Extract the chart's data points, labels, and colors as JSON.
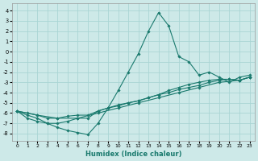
{
  "xlabel": "Humidex (Indice chaleur)",
  "background_color": "#cde9e8",
  "grid_color": "#aad5d4",
  "line_color": "#1a7a6e",
  "xlim": [
    -0.5,
    23.5
  ],
  "ylim": [
    -8.7,
    4.7
  ],
  "xticks": [
    0,
    1,
    2,
    3,
    4,
    5,
    6,
    7,
    8,
    9,
    10,
    11,
    12,
    13,
    14,
    15,
    16,
    17,
    18,
    19,
    20,
    21,
    22,
    23
  ],
  "yticks": [
    -8,
    -7,
    -6,
    -5,
    -4,
    -3,
    -2,
    -1,
    0,
    1,
    2,
    3,
    4
  ],
  "series_main": [
    [
      0,
      -5.8
    ],
    [
      1,
      -6.2
    ],
    [
      2,
      -6.5
    ],
    [
      3,
      -7.0
    ],
    [
      4,
      -7.4
    ],
    [
      5,
      -7.7
    ],
    [
      6,
      -7.9
    ],
    [
      7,
      -8.1
    ],
    [
      8,
      -7.0
    ],
    [
      9,
      -5.5
    ],
    [
      10,
      -3.8
    ],
    [
      11,
      -2.0
    ],
    [
      12,
      -0.2
    ],
    [
      13,
      2.0
    ],
    [
      14,
      3.8
    ],
    [
      15,
      2.5
    ],
    [
      16,
      -0.5
    ],
    [
      17,
      -1.0
    ],
    [
      18,
      -2.3
    ],
    [
      19,
      -2.0
    ],
    [
      20,
      -2.5
    ],
    [
      21,
      -3.0
    ],
    [
      22,
      -2.5
    ],
    [
      23,
      -2.3
    ]
  ],
  "series_lower1": [
    [
      0,
      -5.8
    ],
    [
      1,
      -6.5
    ],
    [
      2,
      -6.8
    ],
    [
      3,
      -7.0
    ],
    [
      4,
      -7.0
    ],
    [
      5,
      -6.8
    ],
    [
      6,
      -6.5
    ],
    [
      7,
      -6.5
    ],
    [
      8,
      -5.8
    ],
    [
      9,
      -5.5
    ],
    [
      10,
      -5.3
    ],
    [
      11,
      -5.0
    ],
    [
      12,
      -4.8
    ],
    [
      13,
      -4.5
    ],
    [
      14,
      -4.2
    ],
    [
      15,
      -4.0
    ],
    [
      16,
      -3.7
    ],
    [
      17,
      -3.5
    ],
    [
      18,
      -3.3
    ],
    [
      19,
      -3.0
    ],
    [
      20,
      -2.8
    ],
    [
      21,
      -2.7
    ],
    [
      22,
      -2.8
    ],
    [
      23,
      -2.5
    ]
  ],
  "series_lower2": [
    [
      0,
      -5.8
    ],
    [
      1,
      -6.0
    ],
    [
      2,
      -6.2
    ],
    [
      3,
      -6.5
    ],
    [
      4,
      -6.5
    ],
    [
      5,
      -6.3
    ],
    [
      6,
      -6.2
    ],
    [
      7,
      -6.2
    ],
    [
      8,
      -5.8
    ],
    [
      9,
      -5.5
    ],
    [
      10,
      -5.2
    ],
    [
      11,
      -5.0
    ],
    [
      12,
      -4.8
    ],
    [
      13,
      -4.5
    ],
    [
      14,
      -4.2
    ],
    [
      15,
      -3.8
    ],
    [
      16,
      -3.5
    ],
    [
      17,
      -3.2
    ],
    [
      18,
      -3.0
    ],
    [
      19,
      -2.8
    ],
    [
      20,
      -2.7
    ],
    [
      21,
      -2.7
    ],
    [
      22,
      -2.8
    ],
    [
      23,
      -2.5
    ]
  ],
  "series_lower3": [
    [
      0,
      -5.8
    ],
    [
      2,
      -6.2
    ],
    [
      4,
      -6.5
    ],
    [
      6,
      -6.5
    ],
    [
      8,
      -6.0
    ],
    [
      10,
      -5.5
    ],
    [
      12,
      -5.0
    ],
    [
      14,
      -4.5
    ],
    [
      16,
      -4.0
    ],
    [
      18,
      -3.5
    ],
    [
      20,
      -3.0
    ],
    [
      22,
      -2.8
    ],
    [
      23,
      -2.5
    ]
  ]
}
